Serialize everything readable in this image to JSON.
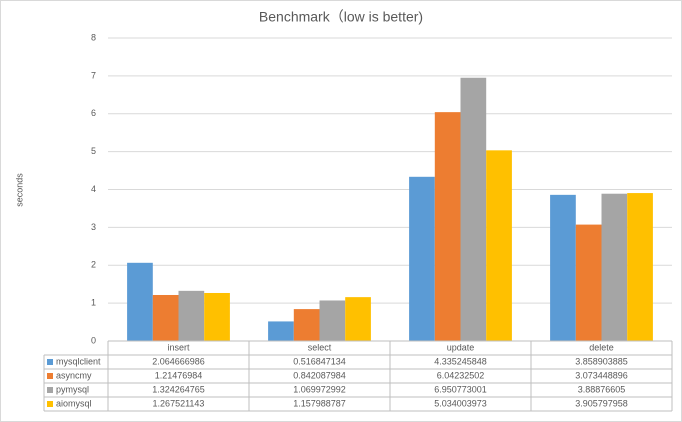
{
  "chart_data": {
    "type": "bar",
    "title": "Benchmark（low is better)",
    "y_label": "seconds",
    "categories": [
      "insert",
      "select",
      "update",
      "delete"
    ],
    "series": [
      {
        "name": "mysqlclient",
        "color": "#5b9bd5",
        "values": [
          2.064666986,
          0.516847134,
          4.335245848,
          3.858903885
        ]
      },
      {
        "name": "asyncmy",
        "color": "#ed7d31",
        "values": [
          1.21476984,
          0.842087984,
          6.04232502,
          3.073448896
        ]
      },
      {
        "name": "pymysql",
        "color": "#a5a5a5",
        "values": [
          1.324264765,
          1.069972992,
          6.950773001,
          3.88876605
        ]
      },
      {
        "name": "aiomysql",
        "color": "#ffc000",
        "values": [
          1.267521143,
          1.157988787,
          5.034003973,
          3.905797958
        ]
      }
    ],
    "ylim": [
      0,
      8
    ],
    "yticks": [
      0,
      1,
      2,
      3,
      4,
      5,
      6,
      7,
      8
    ],
    "grid": true,
    "data_table": true
  }
}
